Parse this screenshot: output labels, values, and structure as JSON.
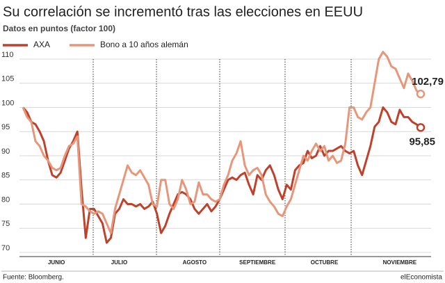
{
  "chart_data": {
    "type": "line",
    "title": "Su correlación se incrementó tras las elecciones en EEUU",
    "subtitle": "Datos en puntos (factor 100)",
    "source": "Fuente: Bloomberg.",
    "brand": "elEconomista",
    "categories": [
      null,
      null,
      null,
      null,
      null,
      null,
      null,
      null,
      "JUNIO",
      null,
      null,
      null,
      null,
      null,
      null,
      null,
      null,
      null,
      null,
      null,
      null,
      null,
      null,
      "JULIO",
      null,
      null,
      null,
      null,
      null,
      null,
      null,
      null,
      null,
      null,
      null,
      null,
      null,
      null,
      null,
      null,
      null,
      "AGOSTO",
      null,
      null,
      null,
      null,
      null,
      null,
      null,
      null,
      null,
      null,
      null,
      null,
      null,
      null,
      "SEPTIEMBRE",
      null,
      null,
      null,
      null,
      null,
      null,
      null,
      null,
      null,
      null,
      null,
      null,
      null,
      null,
      null,
      "OCTUBRE",
      null,
      null,
      null,
      null,
      null,
      null,
      null,
      null,
      null,
      null,
      null,
      null,
      null,
      null,
      null,
      null,
      null,
      "NOVIEMBRE",
      null,
      null,
      null,
      null,
      null
    ],
    "series": [
      {
        "name": "AXA",
        "color": "#c0412b",
        "values": [
          100,
          99,
          97,
          96.5,
          95,
          93,
          89,
          86,
          85.5,
          86.5,
          89,
          91.5,
          93,
          95,
          83,
          73,
          79,
          79,
          77.5,
          76,
          72,
          73,
          78,
          79,
          81,
          80,
          80,
          79.5,
          80,
          79,
          79.5,
          80.5,
          78,
          74,
          75.5,
          78,
          80,
          82,
          82.5,
          82,
          81,
          79,
          78,
          79,
          80,
          78.5,
          79.5,
          81,
          83,
          85,
          85.5,
          85,
          86,
          86.5,
          84,
          82,
          86,
          85,
          87,
          88,
          86,
          83,
          81,
          84,
          83,
          87,
          88,
          88.5,
          91,
          89.5,
          90,
          92,
          90,
          91,
          91,
          91.5,
          92,
          91,
          90.5,
          91,
          88,
          86,
          89,
          92,
          96,
          97,
          100,
          99,
          97,
          96.5,
          99.5,
          98,
          98,
          97,
          96.5,
          95.85
        ],
        "value_labels": {
          "95": "95,85"
        }
      },
      {
        "name": "Bono a 10 años alemán",
        "color": "#e8967a",
        "values": [
          100,
          98,
          97,
          93,
          92,
          90,
          89,
          87.5,
          87,
          87.5,
          90,
          92,
          92.5,
          94,
          80,
          79.5,
          78.5,
          78,
          78.5,
          78,
          76,
          74,
          79,
          82,
          85,
          88,
          86.5,
          86,
          87,
          85.5,
          84,
          80,
          79.5,
          85,
          85,
          80,
          79,
          81,
          85,
          83,
          80,
          80.5,
          84.5,
          82,
          82,
          81,
          80.5,
          81,
          84,
          86,
          89,
          90.5,
          93,
          88,
          86,
          87,
          87.5,
          86,
          82,
          80.5,
          79.5,
          78,
          77.5,
          79.5,
          81,
          84,
          87,
          90,
          89,
          91,
          92.5,
          91,
          92,
          89,
          90,
          88.5,
          89,
          92.5,
          100,
          100,
          98,
          97.5,
          99,
          100,
          105,
          110,
          111.5,
          110.5,
          108.5,
          108,
          106,
          104,
          107,
          105.5,
          103.5,
          102.79
        ],
        "value_labels": {
          "95": "102,79"
        }
      }
    ],
    "ylim": [
      70,
      110
    ],
    "yticks": [
      70,
      75,
      80,
      85,
      90,
      95,
      100,
      105,
      110
    ],
    "grid": true
  }
}
